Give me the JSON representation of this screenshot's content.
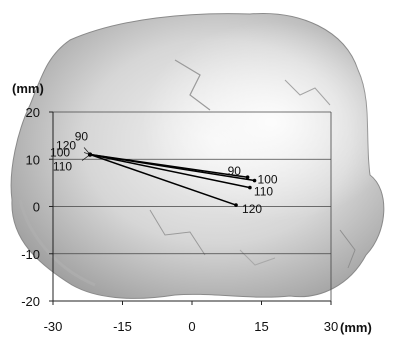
{
  "chart_data": {
    "type": "line",
    "title": "",
    "xlabel": "(mm)",
    "ylabel": "(mm)",
    "xlim": [
      -30,
      30
    ],
    "ylim": [
      -20,
      20
    ],
    "xticks": [
      -30,
      -15,
      0,
      15,
      30
    ],
    "yticks": [
      20,
      10,
      0,
      -10,
      -20
    ],
    "grid": "horizontal",
    "origin": {
      "x": -22,
      "y": 11
    },
    "series": [
      {
        "start_label": "90",
        "end_label": "90",
        "x": [
          -22,
          12
        ],
        "y": [
          11,
          6.2
        ]
      },
      {
        "start_label": "100",
        "end_label": "100",
        "x": [
          -22,
          13.5
        ],
        "y": [
          11,
          5.5
        ]
      },
      {
        "start_label": "110",
        "end_label": "110",
        "x": [
          -22,
          12.5
        ],
        "y": [
          11,
          4.0
        ]
      },
      {
        "start_label": "120",
        "end_label": "120",
        "x": [
          -22,
          9.5
        ],
        "y": [
          11,
          0.3
        ]
      }
    ]
  }
}
